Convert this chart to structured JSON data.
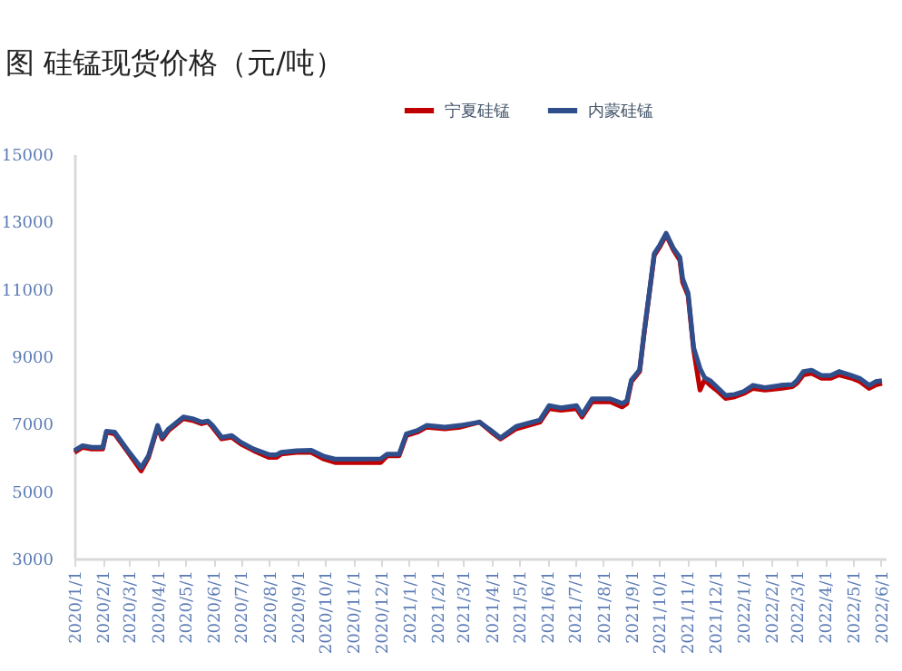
{
  "chart_data": {
    "type": "line",
    "title": "图        硅锰现货价格（元/吨）",
    "xlim": [
      "2020-01-01",
      "2022-06-06"
    ],
    "xticks": [
      {
        "value": "2020-01-01",
        "label": "2020/1/1"
      },
      {
        "value": "2020-02-01",
        "label": "2020/2/1"
      },
      {
        "value": "2020-03-01",
        "label": "2020/3/1"
      },
      {
        "value": "2020-04-01",
        "label": "2020/4/1"
      },
      {
        "value": "2020-05-01",
        "label": "2020/5/1"
      },
      {
        "value": "2020-06-01",
        "label": "2020/6/1"
      },
      {
        "value": "2020-07-01",
        "label": "2020/7/1"
      },
      {
        "value": "2020-08-01",
        "label": "2020/8/1"
      },
      {
        "value": "2020-09-01",
        "label": "2020/9/1"
      },
      {
        "value": "2020-10-01",
        "label": "2020/10/1"
      },
      {
        "value": "2020-11-01",
        "label": "2020/11/1"
      },
      {
        "value": "2020-12-01",
        "label": "2020/12/1"
      },
      {
        "value": "2021-01-01",
        "label": "2021/1/1"
      },
      {
        "value": "2021-02-01",
        "label": "2021/2/1"
      },
      {
        "value": "2021-03-01",
        "label": "2021/3/1"
      },
      {
        "value": "2021-04-01",
        "label": "2021/4/1"
      },
      {
        "value": "2021-05-01",
        "label": "2021/5/1"
      },
      {
        "value": "2021-06-01",
        "label": "2021/6/1"
      },
      {
        "value": "2021-07-01",
        "label": "2021/7/1"
      },
      {
        "value": "2021-08-01",
        "label": "2021/8/1"
      },
      {
        "value": "2021-09-01",
        "label": "2021/9/1"
      },
      {
        "value": "2021-10-01",
        "label": "2021/10/1"
      },
      {
        "value": "2021-11-01",
        "label": "2021/11/1"
      },
      {
        "value": "2021-12-01",
        "label": "2021/12/1"
      },
      {
        "value": "2022-01-01",
        "label": "2022/1/1"
      },
      {
        "value": "2022-02-01",
        "label": "2022/2/1"
      },
      {
        "value": "2022-03-01",
        "label": "2022/3/1"
      },
      {
        "value": "2022-04-01",
        "label": "2022/4/1"
      },
      {
        "value": "2022-05-01",
        "label": "2022/5/1"
      },
      {
        "value": "2022-06-01",
        "label": "2022/6/1"
      }
    ],
    "ylim": [
      3000,
      15000
    ],
    "yticks": [
      3000,
      5000,
      7000,
      9000,
      11000,
      13000,
      15000
    ],
    "grid": false,
    "legend": "top",
    "line_style": "solid",
    "marker": "none",
    "x": [
      "2020-01-01",
      "2020-01-10",
      "2020-01-20",
      "2020-02-01",
      "2020-02-05",
      "2020-02-14",
      "2020-03-01",
      "2020-03-14",
      "2020-03-22",
      "2020-04-01",
      "2020-04-06",
      "2020-04-13",
      "2020-04-29",
      "2020-05-09",
      "2020-05-19",
      "2020-05-26",
      "2020-05-31",
      "2020-06-10",
      "2020-06-21",
      "2020-07-01",
      "2020-07-15",
      "2020-08-01",
      "2020-08-09",
      "2020-08-14",
      "2020-08-31",
      "2020-09-16",
      "2020-09-30",
      "2020-10-12",
      "2020-10-31",
      "2020-12-01",
      "2020-12-08",
      "2020-12-21",
      "2020-12-29",
      "2021-01-10",
      "2021-01-20",
      "2021-02-09",
      "2021-02-26",
      "2021-03-19",
      "2021-04-01",
      "2021-04-11",
      "2021-04-28",
      "2021-05-24",
      "2021-06-03",
      "2021-06-16",
      "2021-07-03",
      "2021-07-09",
      "2021-07-20",
      "2021-08-09",
      "2021-08-22",
      "2021-08-27",
      "2021-09-01",
      "2021-09-10",
      "2021-09-15",
      "2021-09-21",
      "2021-09-26",
      "2021-10-02",
      "2021-10-09",
      "2021-10-17",
      "2021-10-24",
      "2021-10-27",
      "2021-11-02",
      "2021-11-08",
      "2021-11-15",
      "2021-11-20",
      "2021-11-26",
      "2021-12-03",
      "2021-12-13",
      "2021-12-23",
      "2022-01-02",
      "2022-01-12",
      "2022-01-25",
      "2022-02-11",
      "2022-02-24",
      "2022-03-01",
      "2022-03-08",
      "2022-03-17",
      "2022-03-28",
      "2022-04-07",
      "2022-04-16",
      "2022-04-30",
      "2022-05-09",
      "2022-05-19",
      "2022-05-26",
      "2022-06-02"
    ],
    "series": [
      {
        "name": "宁夏硅锰",
        "color": "#c00000",
        "values": [
          6150,
          6300,
          6250,
          6250,
          6750,
          6700,
          6100,
          5600,
          6000,
          6900,
          6550,
          6800,
          7150,
          7100,
          7000,
          7050,
          6900,
          6550,
          6600,
          6400,
          6200,
          6000,
          6000,
          6100,
          6150,
          6150,
          5950,
          5850,
          5850,
          5850,
          6050,
          6050,
          6650,
          6750,
          6900,
          6850,
          6900,
          7050,
          6750,
          6550,
          6850,
          7050,
          7450,
          7400,
          7450,
          7200,
          7650,
          7650,
          7500,
          7600,
          8250,
          8550,
          9700,
          10950,
          12000,
          12250,
          12600,
          12150,
          11850,
          11200,
          10800,
          9200,
          8000,
          8300,
          8150,
          8000,
          7750,
          7800,
          7900,
          8050,
          8000,
          8050,
          8100,
          8200,
          8450,
          8500,
          8350,
          8350,
          8450,
          8350,
          8250,
          8050,
          8150,
          8200
        ]
      },
      {
        "name": "内蒙硅锰",
        "color": "#2f4e8c",
        "values": [
          6200,
          6350,
          6300,
          6300,
          6780,
          6750,
          6150,
          5700,
          6050,
          6950,
          6600,
          6850,
          7200,
          7150,
          7050,
          7080,
          6950,
          6600,
          6650,
          6450,
          6250,
          6080,
          6080,
          6150,
          6200,
          6210,
          6030,
          5950,
          5950,
          5960,
          6100,
          6100,
          6700,
          6800,
          6950,
          6900,
          6950,
          7050,
          6790,
          6580,
          6920,
          7110,
          7540,
          7470,
          7540,
          7270,
          7740,
          7740,
          7600,
          7680,
          8300,
          8600,
          9730,
          10980,
          12050,
          12300,
          12650,
          12200,
          11940,
          11310,
          10870,
          9260,
          8640,
          8370,
          8280,
          8100,
          7840,
          7870,
          7960,
          8140,
          8070,
          8140,
          8160,
          8280,
          8550,
          8590,
          8430,
          8430,
          8550,
          8430,
          8340,
          8140,
          8250,
          8280
        ]
      }
    ]
  }
}
